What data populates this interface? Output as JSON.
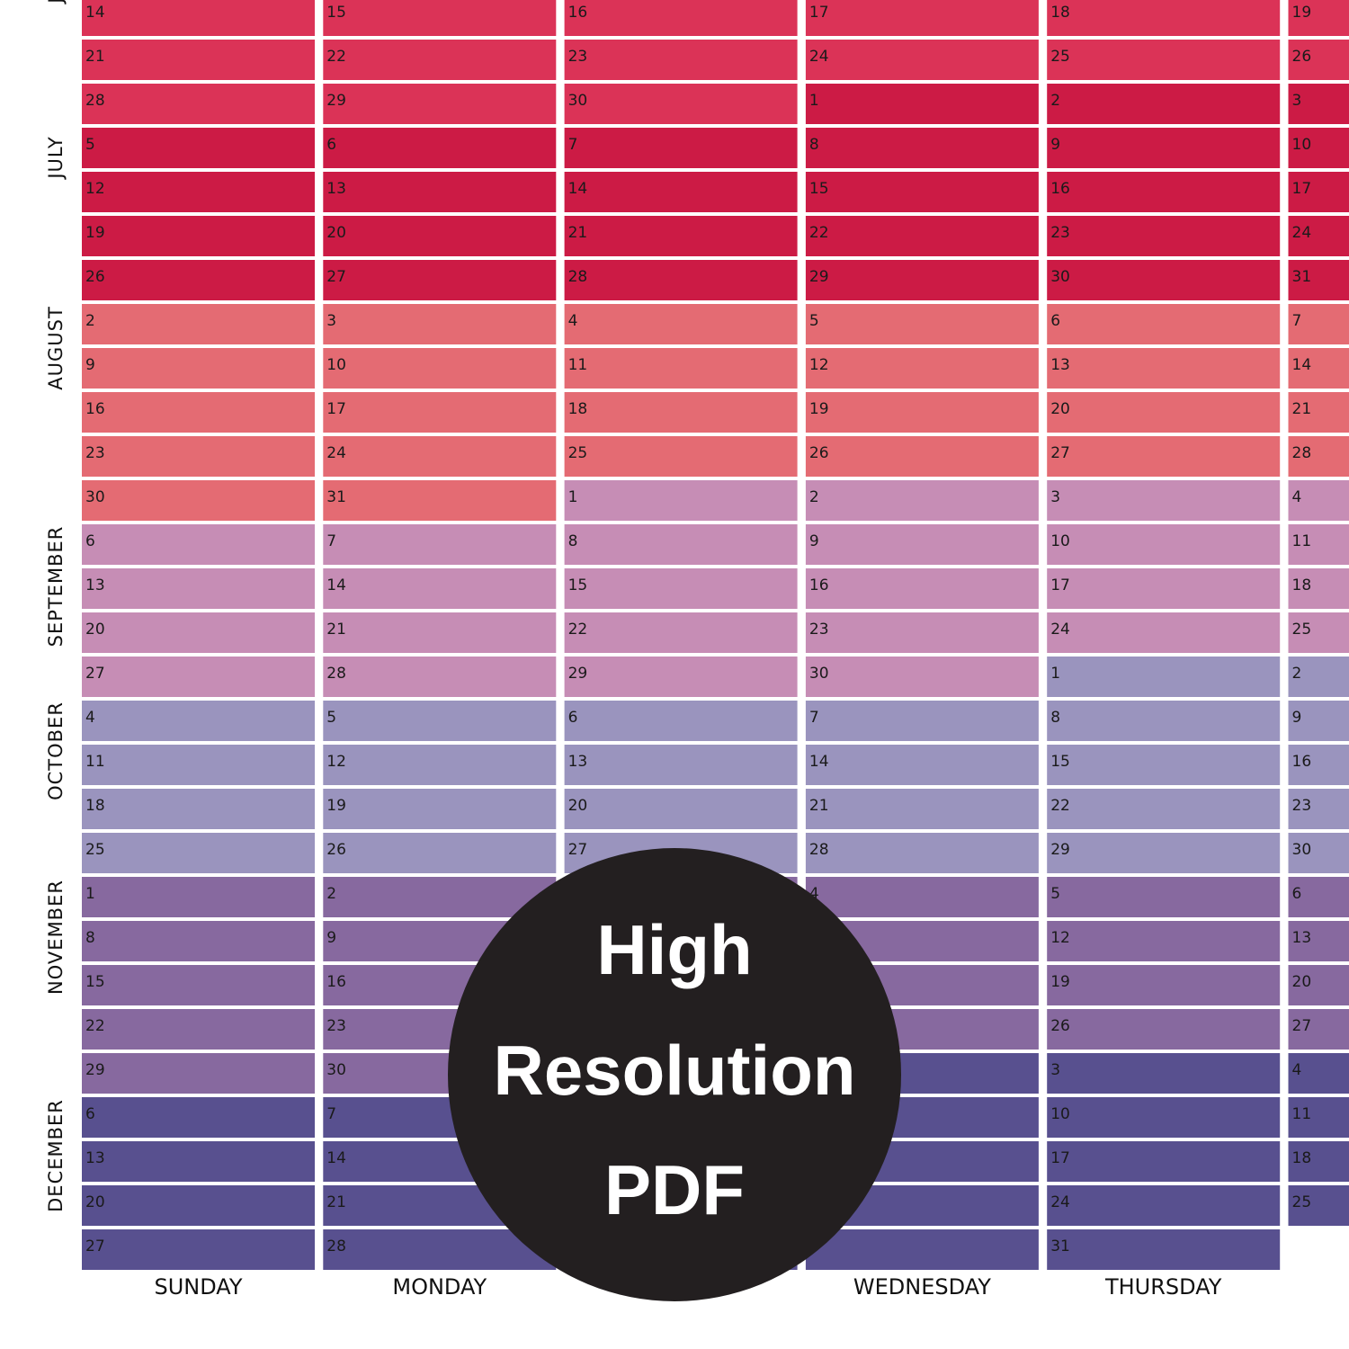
{
  "month_labels": [
    "J",
    "JULY",
    "AUGUST",
    "SEPTEMBER",
    "OCTOBER",
    "NOVEMBER",
    "DECEMBER"
  ],
  "weeks": [
    {
      "days": [
        14,
        15,
        16,
        17,
        18,
        19
      ],
      "colors": [
        "#db3357",
        "#db3357",
        "#db3357",
        "#db3357",
        "#db3357",
        "#db3357"
      ]
    },
    {
      "days": [
        21,
        22,
        23,
        24,
        25,
        26
      ],
      "colors": [
        "#db3357",
        "#db3357",
        "#db3357",
        "#db3357",
        "#db3357",
        "#db3357"
      ]
    },
    {
      "days": [
        28,
        29,
        30,
        1,
        2,
        3
      ],
      "colors": [
        "#db3357",
        "#db3357",
        "#db3357",
        "#cc1b45",
        "#cc1b45",
        "#cc1b45"
      ]
    },
    {
      "days": [
        5,
        6,
        7,
        8,
        9,
        10
      ],
      "colors": [
        "#cc1b45",
        "#cc1b45",
        "#cc1b45",
        "#cc1b45",
        "#cc1b45",
        "#cc1b45"
      ]
    },
    {
      "days": [
        12,
        13,
        14,
        15,
        16,
        17
      ],
      "colors": [
        "#cc1b45",
        "#cc1b45",
        "#cc1b45",
        "#cc1b45",
        "#cc1b45",
        "#cc1b45"
      ]
    },
    {
      "days": [
        19,
        20,
        21,
        22,
        23,
        24
      ],
      "colors": [
        "#cc1b45",
        "#cc1b45",
        "#cc1b45",
        "#cc1b45",
        "#cc1b45",
        "#cc1b45"
      ]
    },
    {
      "days": [
        26,
        27,
        28,
        29,
        30,
        31
      ],
      "colors": [
        "#cc1b45",
        "#cc1b45",
        "#cc1b45",
        "#cc1b45",
        "#cc1b45",
        "#cc1b45"
      ]
    },
    {
      "days": [
        2,
        3,
        4,
        5,
        6,
        7
      ],
      "colors": [
        "#e46b73",
        "#e46b73",
        "#e46b73",
        "#e46b73",
        "#e46b73",
        "#e46b73"
      ]
    },
    {
      "days": [
        9,
        10,
        11,
        12,
        13,
        14
      ],
      "colors": [
        "#e46b73",
        "#e46b73",
        "#e46b73",
        "#e46b73",
        "#e46b73",
        "#e46b73"
      ]
    },
    {
      "days": [
        16,
        17,
        18,
        19,
        20,
        21
      ],
      "colors": [
        "#e46b73",
        "#e46b73",
        "#e46b73",
        "#e46b73",
        "#e46b73",
        "#e46b73"
      ]
    },
    {
      "days": [
        23,
        24,
        25,
        26,
        27,
        28
      ],
      "colors": [
        "#e46b73",
        "#e46b73",
        "#e46b73",
        "#e46b73",
        "#e46b73",
        "#e46b73"
      ]
    },
    {
      "days": [
        30,
        31,
        1,
        2,
        3,
        4
      ],
      "colors": [
        "#e46b73",
        "#e46b73",
        "#c68db5",
        "#c68db5",
        "#c68db5",
        "#c68db5"
      ]
    },
    {
      "days": [
        6,
        7,
        8,
        9,
        10,
        11
      ],
      "colors": [
        "#c68db5",
        "#c68db5",
        "#c68db5",
        "#c68db5",
        "#c68db5",
        "#c68db5"
      ]
    },
    {
      "days": [
        13,
        14,
        15,
        16,
        17,
        18
      ],
      "colors": [
        "#c68db5",
        "#c68db5",
        "#c68db5",
        "#c68db5",
        "#c68db5",
        "#c68db5"
      ]
    },
    {
      "days": [
        20,
        21,
        22,
        23,
        24,
        25
      ],
      "colors": [
        "#c68db5",
        "#c68db5",
        "#c68db5",
        "#c68db5",
        "#c68db5",
        "#c68db5"
      ]
    },
    {
      "days": [
        27,
        28,
        29,
        30,
        1,
        2
      ],
      "colors": [
        "#c68db5",
        "#c68db5",
        "#c68db5",
        "#c68db5",
        "#9a94be",
        "#9a94be"
      ]
    },
    {
      "days": [
        4,
        5,
        6,
        7,
        8,
        9
      ],
      "colors": [
        "#9a94be",
        "#9a94be",
        "#9a94be",
        "#9a94be",
        "#9a94be",
        "#9a94be"
      ]
    },
    {
      "days": [
        11,
        12,
        13,
        14,
        15,
        16
      ],
      "colors": [
        "#9a94be",
        "#9a94be",
        "#9a94be",
        "#9a94be",
        "#9a94be",
        "#9a94be"
      ]
    },
    {
      "days": [
        18,
        19,
        20,
        21,
        22,
        23
      ],
      "colors": [
        "#9a94be",
        "#9a94be",
        "#9a94be",
        "#9a94be",
        "#9a94be",
        "#9a94be"
      ]
    },
    {
      "days": [
        25,
        26,
        27,
        28,
        29,
        30
      ],
      "colors": [
        "#9a94be",
        "#9a94be",
        "#9a94be",
        "#9a94be",
        "#9a94be",
        "#9a94be"
      ]
    },
    {
      "days": [
        1,
        2,
        null,
        4,
        5,
        6
      ],
      "colors": [
        "#87699f",
        "#87699f",
        "#87699f",
        "#87699f",
        "#87699f",
        "#87699f"
      ]
    },
    {
      "days": [
        8,
        9,
        null,
        null,
        12,
        13
      ],
      "colors": [
        "#87699f",
        "#87699f",
        "#87699f",
        "#87699f",
        "#87699f",
        "#87699f"
      ]
    },
    {
      "days": [
        15,
        16,
        null,
        null,
        19,
        20
      ],
      "colors": [
        "#87699f",
        "#87699f",
        "#87699f",
        "#87699f",
        "#87699f",
        "#87699f"
      ]
    },
    {
      "days": [
        22,
        23,
        null,
        null,
        26,
        27
      ],
      "colors": [
        "#87699f",
        "#87699f",
        "#87699f",
        "#87699f",
        "#87699f",
        "#87699f"
      ]
    },
    {
      "days": [
        29,
        30,
        null,
        null,
        3,
        4
      ],
      "colors": [
        "#87699f",
        "#87699f",
        "#58508f",
        "#58508f",
        "#58508f",
        "#58508f"
      ]
    },
    {
      "days": [
        6,
        7,
        null,
        null,
        10,
        11
      ],
      "colors": [
        "#58508f",
        "#58508f",
        "#58508f",
        "#58508f",
        "#58508f",
        "#58508f"
      ]
    },
    {
      "days": [
        13,
        14,
        null,
        null,
        17,
        18
      ],
      "colors": [
        "#58508f",
        "#58508f",
        "#58508f",
        "#58508f",
        "#58508f",
        "#58508f"
      ]
    },
    {
      "days": [
        20,
        21,
        null,
        null,
        24,
        25
      ],
      "colors": [
        "#58508f",
        "#58508f",
        "#58508f",
        "#58508f",
        "#58508f",
        "#58508f"
      ]
    },
    {
      "days": [
        27,
        28,
        null,
        null,
        31
      ],
      "colors": [
        "#58508f",
        "#58508f",
        "#58508f",
        "#58508f",
        "#58508f"
      ]
    }
  ],
  "weekday_labels": [
    "SUNDAY",
    "MONDAY",
    "WEDNESDAY",
    "THURSDAY"
  ],
  "badge": {
    "lines": [
      "High",
      "Resolution",
      "PDF"
    ]
  }
}
